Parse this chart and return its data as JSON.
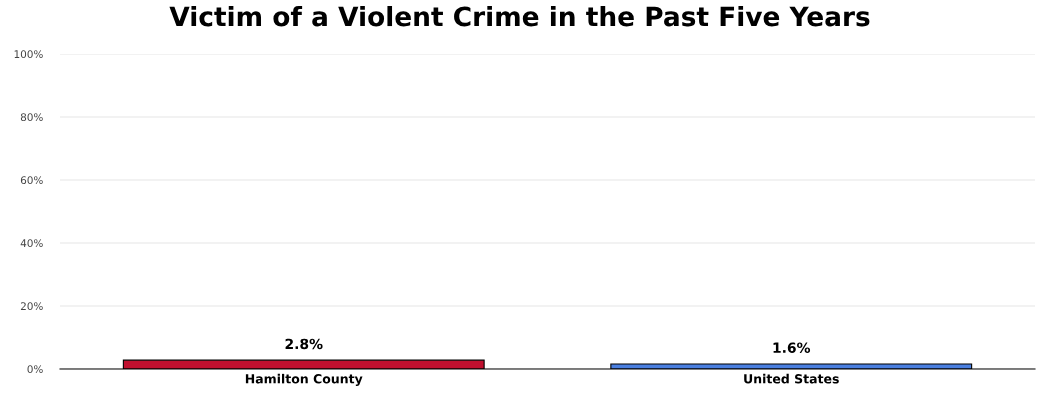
{
  "chart_data": {
    "type": "bar",
    "title": "Victim of a Violent Crime in the Past Five Years",
    "categories": [
      "Hamilton County",
      "United States"
    ],
    "values": [
      2.8,
      1.6
    ],
    "colors": [
      "#c0102f",
      "#4a7fe0"
    ],
    "value_labels": [
      "2.8%",
      "1.6%"
    ],
    "ylim": [
      0,
      100
    ],
    "yticks": [
      {
        "value": 0,
        "label": "0%"
      },
      {
        "value": 20,
        "label": "20%"
      },
      {
        "value": 40,
        "label": "40%"
      },
      {
        "value": 60,
        "label": "60%"
      },
      {
        "value": 80,
        "label": "80%"
      },
      {
        "value": 100,
        "label": "100%"
      }
    ],
    "grid": "y"
  }
}
